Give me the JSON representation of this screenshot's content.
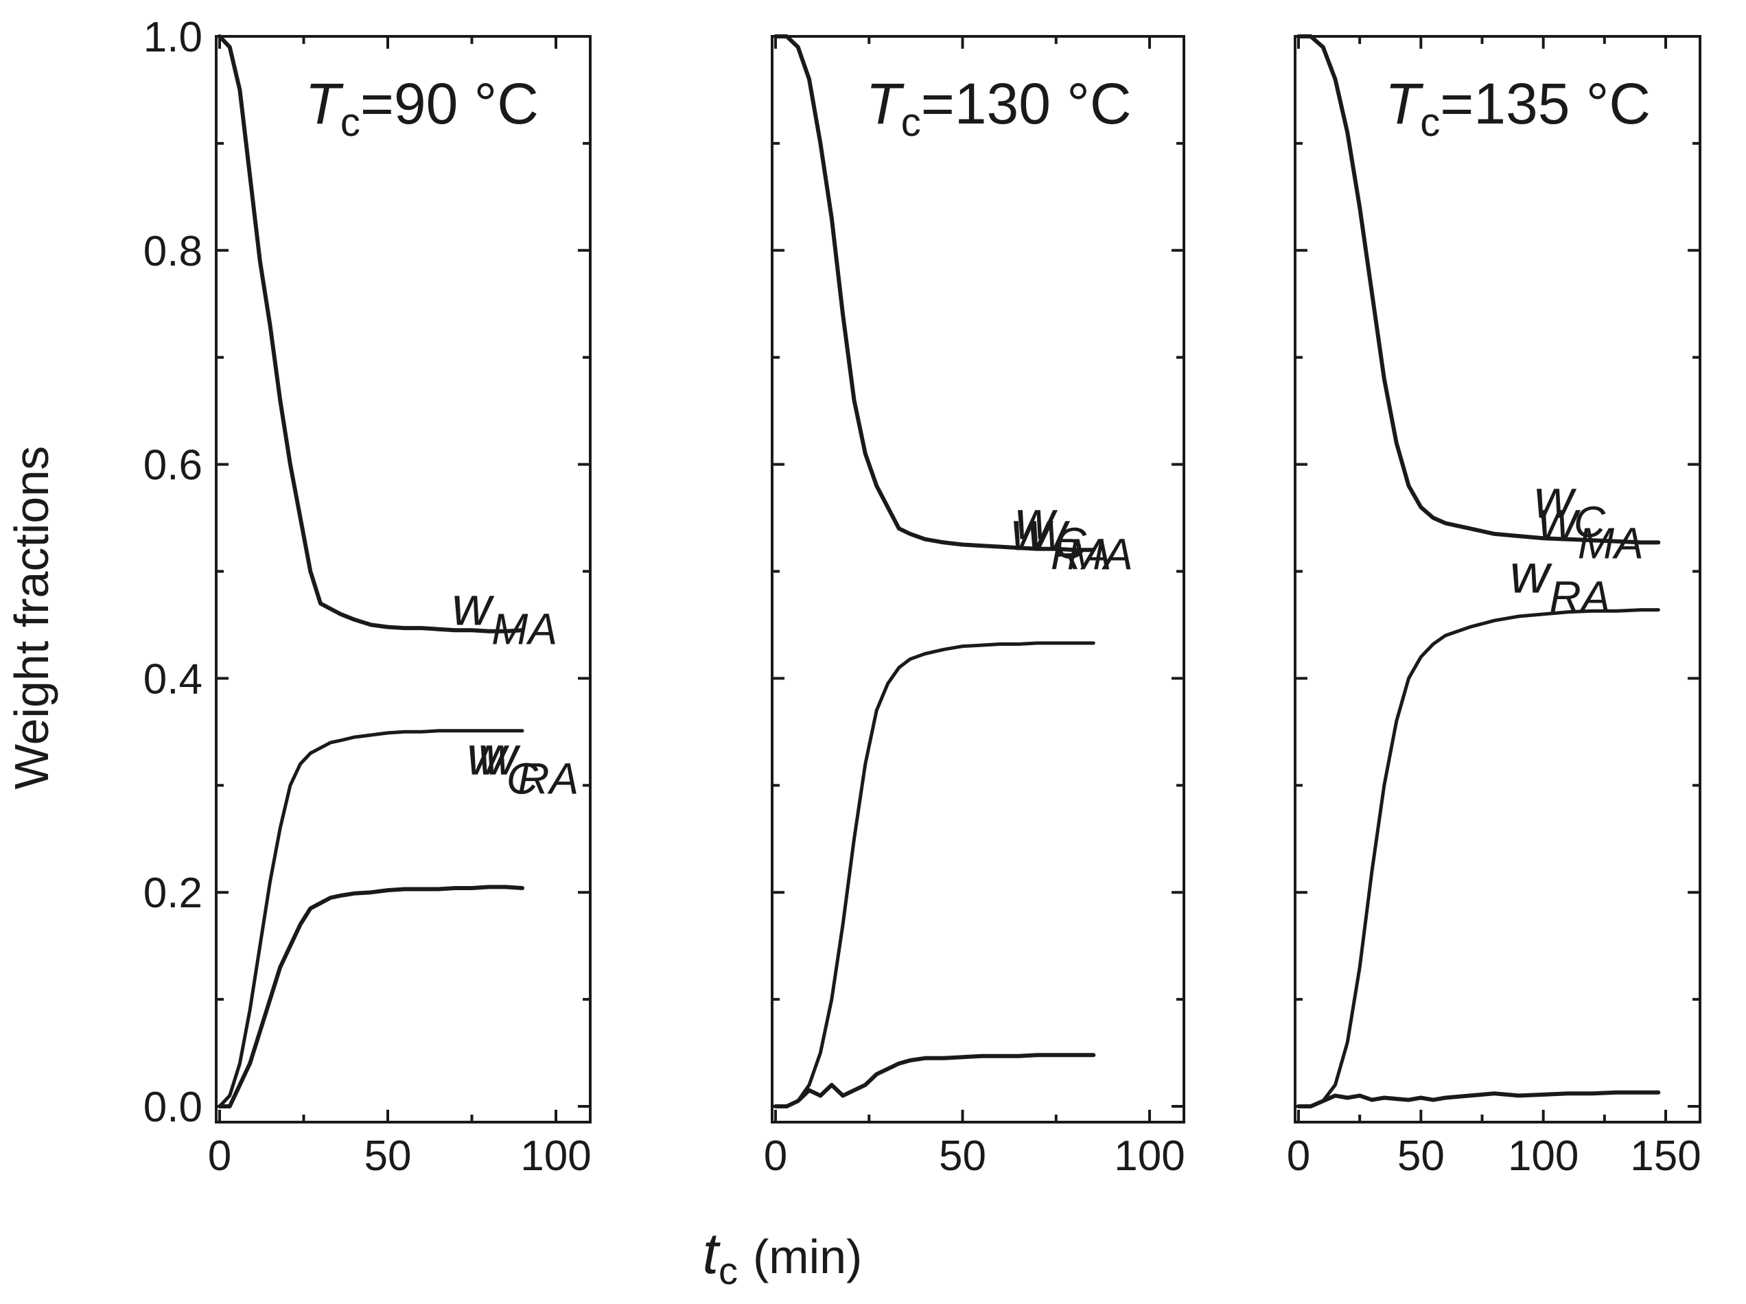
{
  "chart_data": {
    "type": "line",
    "ylabel": "Weight fractions",
    "xlabel": {
      "symbol": "t",
      "subscript": "c",
      "unit": "(min)"
    },
    "ylim": [
      0.0,
      1.0
    ],
    "yticks": [
      "0.0",
      "0.2",
      "0.4",
      "0.6",
      "0.8",
      "1.0"
    ],
    "grid": false,
    "line_color": "#1a1a1a",
    "panels": [
      {
        "title": {
          "symbol": "T",
          "subscript": "c",
          "value": "=90 °C"
        },
        "xlim": [
          0,
          100
        ],
        "xticks": [
          "0",
          "50",
          "100"
        ],
        "series": [
          {
            "name": "w_MA",
            "label_main": "w",
            "label_sub": "MA",
            "x": [
              0,
              3,
              6,
              9,
              12,
              15,
              18,
              21,
              24,
              27,
              30,
              33,
              36,
              40,
              45,
              50,
              55,
              60,
              65,
              70,
              75,
              80,
              85,
              90
            ],
            "y": [
              1.0,
              0.99,
              0.95,
              0.87,
              0.79,
              0.73,
              0.66,
              0.6,
              0.55,
              0.5,
              0.47,
              0.465,
              0.46,
              0.455,
              0.45,
              0.448,
              0.447,
              0.447,
              0.446,
              0.445,
              0.445,
              0.444,
              0.444,
              0.445
            ]
          },
          {
            "name": "w_C",
            "label_main": "w",
            "label_sub": "C",
            "x": [
              0,
              3,
              6,
              9,
              12,
              15,
              18,
              21,
              24,
              27,
              30,
              33,
              36,
              40,
              45,
              50,
              55,
              60,
              65,
              70,
              75,
              80,
              85,
              90
            ],
            "y": [
              0.0,
              0.01,
              0.04,
              0.09,
              0.15,
              0.21,
              0.26,
              0.3,
              0.32,
              0.33,
              0.335,
              0.34,
              0.342,
              0.345,
              0.347,
              0.349,
              0.35,
              0.35,
              0.351,
              0.351,
              0.351,
              0.351,
              0.351,
              0.351
            ]
          },
          {
            "name": "w_RA",
            "label_main": "w",
            "label_sub": "RA",
            "x": [
              0,
              3,
              6,
              9,
              12,
              15,
              18,
              21,
              24,
              27,
              30,
              33,
              36,
              40,
              45,
              50,
              55,
              60,
              65,
              70,
              75,
              80,
              85,
              90
            ],
            "y": [
              0.0,
              0.0,
              0.02,
              0.04,
              0.07,
              0.1,
              0.13,
              0.15,
              0.17,
              0.185,
              0.19,
              0.195,
              0.197,
              0.199,
              0.2,
              0.202,
              0.203,
              0.203,
              0.203,
              0.204,
              0.204,
              0.205,
              0.205,
              0.204
            ]
          }
        ]
      },
      {
        "title": {
          "symbol": "T",
          "subscript": "c",
          "value": "=130 °C"
        },
        "xlim": [
          0,
          100
        ],
        "xticks": [
          "0",
          "50",
          "100"
        ],
        "series": [
          {
            "name": "w_MA",
            "label_main": "w",
            "label_sub": "MA",
            "x": [
              0,
              3,
              6,
              9,
              12,
              15,
              18,
              21,
              24,
              27,
              30,
              33,
              36,
              40,
              45,
              50,
              55,
              60,
              65,
              70,
              75,
              80,
              85
            ],
            "y": [
              1.0,
              1.0,
              0.99,
              0.96,
              0.9,
              0.83,
              0.74,
              0.66,
              0.61,
              0.58,
              0.56,
              0.54,
              0.535,
              0.53,
              0.527,
              0.525,
              0.524,
              0.523,
              0.522,
              0.521,
              0.521,
              0.52,
              0.52
            ]
          },
          {
            "name": "w_C",
            "label_main": "w",
            "label_sub": "C",
            "x": [
              0,
              3,
              6,
              9,
              12,
              15,
              18,
              21,
              24,
              27,
              30,
              33,
              36,
              40,
              45,
              50,
              55,
              60,
              65,
              70,
              75,
              80,
              85
            ],
            "y": [
              0.0,
              0.0,
              0.005,
              0.02,
              0.05,
              0.1,
              0.17,
              0.25,
              0.32,
              0.37,
              0.395,
              0.41,
              0.418,
              0.423,
              0.427,
              0.43,
              0.431,
              0.432,
              0.432,
              0.433,
              0.433,
              0.433,
              0.433
            ]
          },
          {
            "name": "w_RA",
            "label_main": "w",
            "label_sub": "RA",
            "x": [
              0,
              3,
              6,
              9,
              12,
              15,
              18,
              21,
              24,
              27,
              30,
              33,
              36,
              40,
              45,
              50,
              55,
              60,
              65,
              70,
              75,
              80,
              85
            ],
            "y": [
              0.0,
              0.0,
              0.005,
              0.015,
              0.01,
              0.02,
              0.01,
              0.015,
              0.02,
              0.03,
              0.035,
              0.04,
              0.043,
              0.045,
              0.045,
              0.046,
              0.047,
              0.047,
              0.047,
              0.048,
              0.048,
              0.048,
              0.048
            ]
          }
        ]
      },
      {
        "title": {
          "symbol": "T",
          "subscript": "c",
          "value": "=135 °C"
        },
        "xlim": [
          0,
          150
        ],
        "xticks": [
          "0",
          "50",
          "100",
          "150"
        ],
        "series": [
          {
            "name": "w_MA",
            "label_main": "w",
            "label_sub": "MA",
            "x": [
              0,
              5,
              10,
              15,
              20,
              25,
              30,
              35,
              40,
              45,
              50,
              55,
              60,
              70,
              80,
              90,
              100,
              110,
              120,
              130,
              140,
              147
            ],
            "y": [
              1.0,
              1.0,
              0.99,
              0.96,
              0.91,
              0.84,
              0.76,
              0.68,
              0.62,
              0.58,
              0.56,
              0.55,
              0.545,
              0.54,
              0.535,
              0.533,
              0.531,
              0.53,
              0.529,
              0.528,
              0.527,
              0.527
            ]
          },
          {
            "name": "w_C",
            "label_main": "w",
            "label_sub": "C",
            "x": [
              0,
              5,
              10,
              15,
              20,
              25,
              30,
              35,
              40,
              45,
              50,
              55,
              60,
              70,
              80,
              90,
              100,
              110,
              120,
              130,
              140,
              147
            ],
            "y": [
              0.0,
              0.0,
              0.005,
              0.02,
              0.06,
              0.13,
              0.22,
              0.3,
              0.36,
              0.4,
              0.42,
              0.432,
              0.44,
              0.448,
              0.454,
              0.458,
              0.46,
              0.462,
              0.463,
              0.463,
              0.464,
              0.464
            ]
          },
          {
            "name": "w_RA",
            "label_main": "w",
            "label_sub": "RA",
            "x": [
              0,
              5,
              10,
              15,
              20,
              25,
              30,
              35,
              40,
              45,
              50,
              55,
              60,
              70,
              80,
              90,
              100,
              110,
              120,
              130,
              140,
              147
            ],
            "y": [
              0.0,
              0.0,
              0.005,
              0.01,
              0.008,
              0.01,
              0.006,
              0.008,
              0.007,
              0.006,
              0.008,
              0.006,
              0.008,
              0.01,
              0.012,
              0.01,
              0.011,
              0.012,
              0.012,
              0.013,
              0.013,
              0.013
            ]
          }
        ]
      }
    ]
  }
}
